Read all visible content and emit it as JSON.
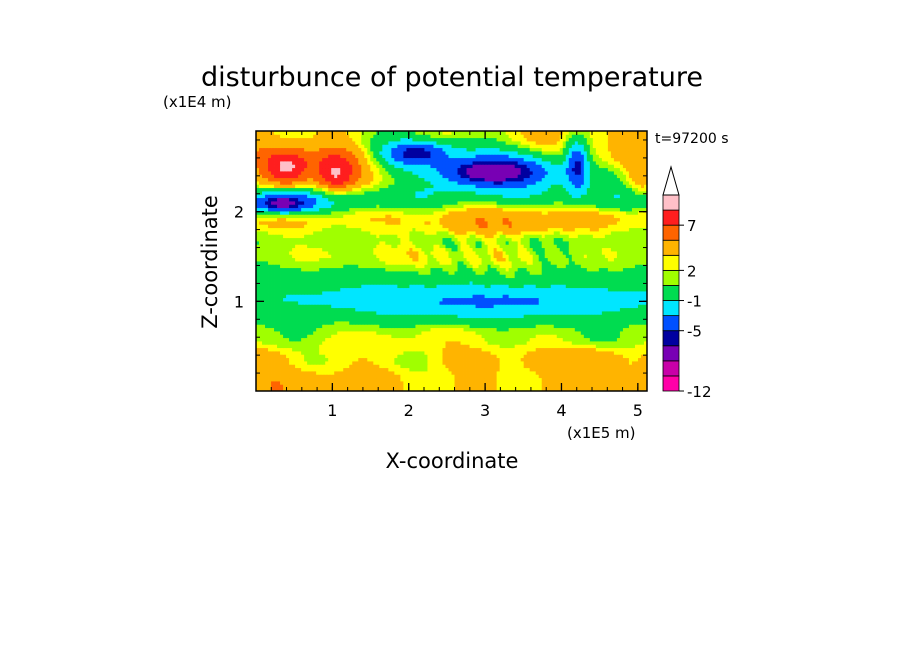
{
  "chart_data": {
    "type": "heatmap",
    "title": "disturbunce of potential temperature",
    "xlabel": "X-coordinate",
    "ylabel": "Z-coordinate",
    "x_unit_label": "(x1E5 m)",
    "y_unit_label": "(x1E4 m)",
    "time_label": "t=97200 s",
    "xlim": [
      0,
      5.12
    ],
    "ylim": [
      0,
      2.9
    ],
    "x_ticks": [
      1,
      2,
      3,
      4,
      5
    ],
    "y_ticks": [
      1,
      2
    ],
    "x_tick_labels": [
      "1",
      "2",
      "3",
      "4",
      "5"
    ],
    "y_tick_labels": [
      "1",
      "2"
    ],
    "colorbar": {
      "levels": [
        -12,
        -10,
        -8,
        -6,
        -5,
        -3,
        -1,
        1,
        2,
        3,
        5,
        7,
        9,
        11
      ],
      "labels": [
        {
          "value": -12,
          "text": "-12"
        },
        {
          "value": -5,
          "text": "-5"
        },
        {
          "value": -1,
          "text": "-1"
        },
        {
          "value": 2,
          "text": "2"
        },
        {
          "value": 7,
          "text": "7"
        }
      ],
      "colors": [
        "#ff00a8",
        "#c800a8",
        "#7800b4",
        "#0000a0",
        "#0050ff",
        "#00e6ff",
        "#00dc50",
        "#a0ff00",
        "#ffff00",
        "#ffb400",
        "#ff6400",
        "#ff1e1e",
        "#ffc0c8"
      ],
      "over_color": "#ffffff",
      "extend": "max"
    },
    "bands": [
      {
        "z": 0.12,
        "amp": 1.6,
        "base": 3.5
      },
      {
        "z": 0.35,
        "amp": 1.8,
        "base": 3.0
      },
      {
        "z": 0.6,
        "amp": 1.2,
        "base": 1.8
      },
      {
        "z": 0.85,
        "amp": 0.6,
        "base": 0.5
      },
      {
        "z": 1.1,
        "amp": 0.4,
        "base": -0.3
      },
      {
        "z": 1.3,
        "amp": 0.5,
        "base": 0.6
      },
      {
        "z": 1.5,
        "amp": 1.0,
        "base": 2.2
      },
      {
        "z": 1.72,
        "amp": 0.8,
        "base": 1.0
      },
      {
        "z": 1.9,
        "amp": 1.5,
        "base": 3.0
      },
      {
        "z": 2.15,
        "amp": 1.7,
        "base": 0.0
      },
      {
        "z": 2.4,
        "amp": 1.6,
        "base": 2.0
      },
      {
        "z": 2.6,
        "amp": 2.0,
        "base": 3.5
      },
      {
        "z": 2.8,
        "amp": 1.8,
        "base": 2.5
      }
    ],
    "features": [
      {
        "x": 0.4,
        "z": 2.5,
        "value": 9.5,
        "sx": 0.35,
        "sz": 0.22
      },
      {
        "x": 1.05,
        "z": 2.45,
        "value": 9.5,
        "sx": 0.3,
        "sz": 0.22
      },
      {
        "x": 3.1,
        "z": 2.45,
        "value": -7.5,
        "sx": 0.9,
        "sz": 0.22
      },
      {
        "x": 2.1,
        "z": 2.65,
        "value": -6.0,
        "sx": 0.5,
        "sz": 0.15
      },
      {
        "x": 4.2,
        "z": 2.5,
        "value": -5.5,
        "sx": 0.15,
        "sz": 0.3
      },
      {
        "x": 0.35,
        "z": 2.1,
        "value": -7.0,
        "sx": 0.45,
        "sz": 0.12
      },
      {
        "x": 3.1,
        "z": 1.88,
        "value": 5.0,
        "sx": 0.9,
        "sz": 0.15
      },
      {
        "x": 3.0,
        "z": 1.0,
        "value": -3.3,
        "sx": 2.3,
        "sz": 0.17
      },
      {
        "x": 4.4,
        "z": 0.35,
        "value": 4.5,
        "sx": 0.4,
        "sz": 0.12
      },
      {
        "x": 5.05,
        "z": 2.5,
        "value": 4.5,
        "sx": 0.2,
        "sz": 0.3
      },
      {
        "x": 1.4,
        "z": 0.5,
        "value": 3.0,
        "sx": 0.6,
        "sz": 0.12
      }
    ]
  }
}
